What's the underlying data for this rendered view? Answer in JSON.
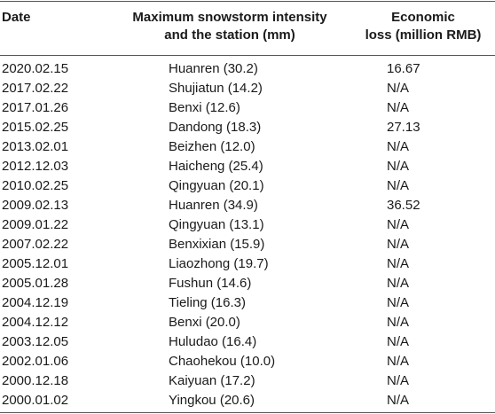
{
  "table": {
    "headers": {
      "date": "Date",
      "intensity_line1": "Maximum snowstorm intensity",
      "intensity_line2": "and the station (mm)",
      "loss_line1": "Economic",
      "loss_line2": "loss (million RMB)"
    },
    "rows": [
      {
        "date": "2020.02.15",
        "intensity": "Huanren (30.2)",
        "loss": "16.67"
      },
      {
        "date": "2017.02.22",
        "intensity": "Shujiatun (14.2)",
        "loss": "N/A"
      },
      {
        "date": "2017.01.26",
        "intensity": "Benxi (12.6)",
        "loss": "N/A"
      },
      {
        "date": "2015.02.25",
        "intensity": "Dandong (18.3)",
        "loss": "27.13"
      },
      {
        "date": "2013.02.01",
        "intensity": "Beizhen (12.0)",
        "loss": "N/A"
      },
      {
        "date": "2012.12.03",
        "intensity": "Haicheng (25.4)",
        "loss": "N/A"
      },
      {
        "date": "2010.02.25",
        "intensity": "Qingyuan (20.1)",
        "loss": "N/A"
      },
      {
        "date": "2009.02.13",
        "intensity": "Huanren (34.9)",
        "loss": "36.52"
      },
      {
        "date": "2009.01.22",
        "intensity": "Qingyuan (13.1)",
        "loss": "N/A"
      },
      {
        "date": "2007.02.22",
        "intensity": "Benxixian (15.9)",
        "loss": "N/A"
      },
      {
        "date": "2005.12.01",
        "intensity": "Liaozhong (19.7)",
        "loss": "N/A"
      },
      {
        "date": "2005.01.28",
        "intensity": "Fushun (14.6)",
        "loss": "N/A"
      },
      {
        "date": "2004.12.19",
        "intensity": "Tieling (16.3)",
        "loss": "N/A"
      },
      {
        "date": "2004.12.12",
        "intensity": "Benxi (20.0)",
        "loss": "N/A"
      },
      {
        "date": "2003.12.05",
        "intensity": "Huludao (16.4)",
        "loss": "N/A"
      },
      {
        "date": "2002.01.06",
        "intensity": "Chaohekou (10.0)",
        "loss": "N/A"
      },
      {
        "date": "2000.12.18",
        "intensity": "Kaiyuan (17.2)",
        "loss": "N/A"
      },
      {
        "date": "2000.01.02",
        "intensity": "Yingkou (20.6)",
        "loss": "N/A"
      }
    ]
  }
}
